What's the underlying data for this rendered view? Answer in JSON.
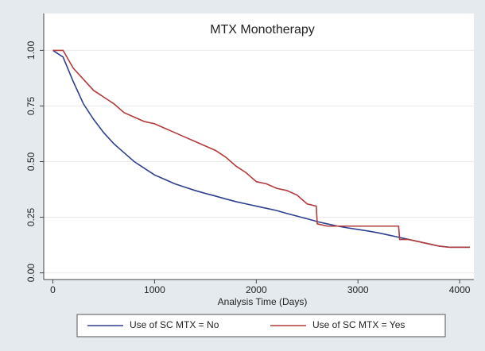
{
  "chart_data": {
    "type": "line",
    "title": "MTX Monotherapy",
    "x_label": "Analysis Time (Days)",
    "x": [
      0,
      100,
      200,
      300,
      400,
      500,
      600,
      700,
      800,
      900,
      1000,
      1100,
      1200,
      1300,
      1400,
      1500,
      1600,
      1700,
      1800,
      1900,
      2000,
      2100,
      2200,
      2300,
      2400,
      2500,
      2590,
      2600,
      2700,
      2800,
      2900,
      3000,
      3100,
      3200,
      3300,
      3400,
      3410,
      3500,
      3600,
      3700,
      3800,
      3900,
      4000,
      4100
    ],
    "series": [
      {
        "name": "Use of SC MTX = No",
        "color": "#2e3f8e",
        "values": [
          1,
          0.97,
          0.86,
          0.76,
          0.69,
          0.63,
          0.58,
          0.54,
          0.5,
          0.47,
          0.44,
          0.42,
          0.4,
          0.385,
          0.37,
          0.357,
          0.345,
          0.332,
          0.32,
          0.31,
          0.3,
          0.29,
          0.28,
          0.267,
          0.255,
          0.243,
          0.232,
          0.23,
          0.22,
          0.21,
          0.202,
          0.195,
          0.188,
          0.18,
          0.17,
          0.16,
          0.159,
          0.15,
          0.14,
          0.13,
          0.12,
          0.115,
          0.115,
          0.115
        ]
      },
      {
        "name": "Use of SC MTX = Yes",
        "color": "#b23a3a",
        "values": [
          1,
          1,
          0.92,
          0.87,
          0.82,
          0.79,
          0.76,
          0.72,
          0.7,
          0.68,
          0.67,
          0.65,
          0.63,
          0.61,
          0.59,
          0.57,
          0.55,
          0.52,
          0.48,
          0.45,
          0.41,
          0.4,
          0.38,
          0.37,
          0.35,
          0.31,
          0.3,
          0.22,
          0.21,
          0.21,
          0.21,
          0.21,
          0.21,
          0.21,
          0.21,
          0.21,
          0.15,
          0.15,
          0.14,
          0.13,
          0.12,
          0.115,
          0.115,
          0.115
        ]
      }
    ],
    "xlim": [
      -90,
      4140
    ],
    "xticks": [
      0,
      1000,
      2000,
      3000,
      4000
    ],
    "ylim": [
      -0.03,
      1.03
    ],
    "yticks": [
      {
        "value": 0,
        "label": "0.00"
      },
      {
        "value": 0.25,
        "label": "0.25"
      },
      {
        "value": 0.5,
        "label": "0.50"
      },
      {
        "value": 0.75,
        "label": "0.75"
      },
      {
        "value": 1,
        "label": "1.00"
      }
    ],
    "grid": true,
    "legend": "bottom"
  }
}
